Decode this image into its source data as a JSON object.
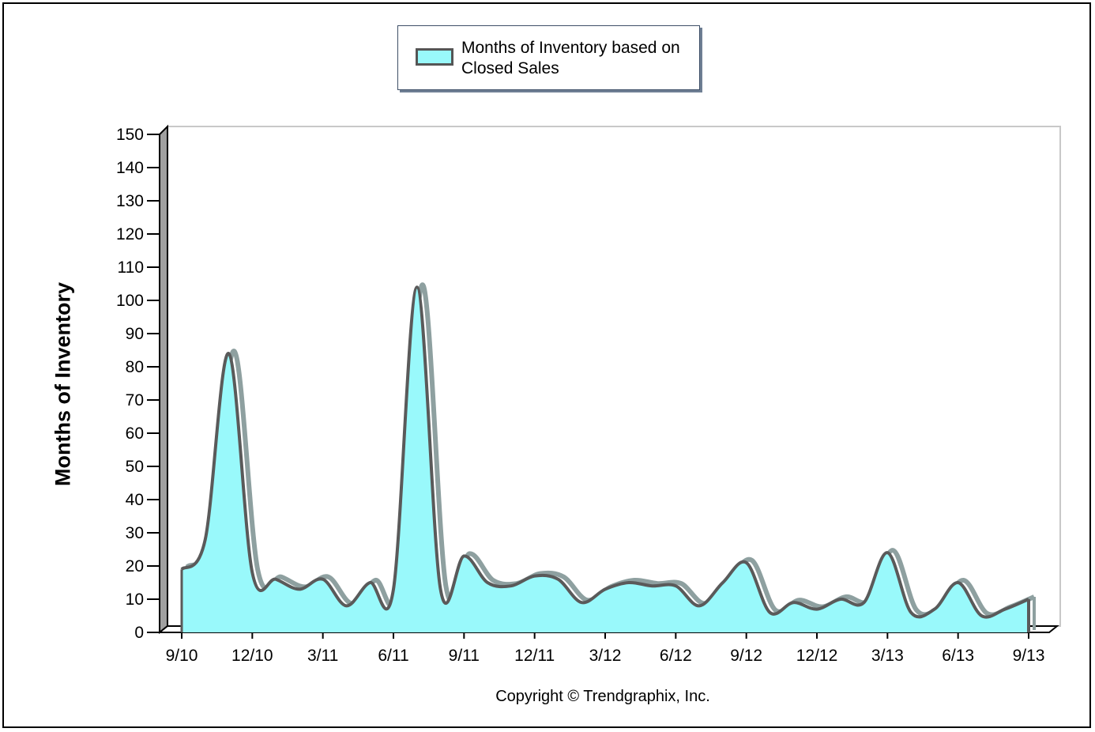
{
  "legend": {
    "label": "Months of Inventory based on Closed Sales"
  },
  "copyright": "Copyright © Trendgraphix, Inc.",
  "colors": {
    "fill": "#99f9fb",
    "line": "#5a5a5a",
    "shadow": "#8ea0a0",
    "wall": "#a0a0a0"
  },
  "chart_data": {
    "type": "area",
    "ylabel": "Months of Inventory",
    "xlabel": "",
    "ylim": [
      0,
      150
    ],
    "yticks": [
      0,
      10,
      20,
      30,
      40,
      50,
      60,
      70,
      80,
      90,
      100,
      110,
      120,
      130,
      140,
      150
    ],
    "xtick_labels": [
      "9/10",
      "12/10",
      "3/11",
      "6/11",
      "9/11",
      "12/11",
      "3/12",
      "6/12",
      "9/12",
      "12/12",
      "3/13",
      "6/13",
      "9/13"
    ],
    "x": [
      "9/10",
      "10/10",
      "11/10",
      "12/10",
      "1/11",
      "2/11",
      "3/11",
      "4/11",
      "5/11",
      "6/11",
      "7/11",
      "8/11",
      "9/11",
      "10/11",
      "11/11",
      "12/11",
      "1/12",
      "2/12",
      "3/12",
      "4/12",
      "5/12",
      "6/12",
      "7/12",
      "8/12",
      "9/12",
      "10/12",
      "11/12",
      "12/12",
      "1/13",
      "2/13",
      "3/13",
      "4/13",
      "5/13",
      "6/13",
      "7/13",
      "8/13",
      "9/13"
    ],
    "series": [
      {
        "name": "Months of Inventory based on Closed Sales",
        "values": [
          19,
          28,
          84,
          18,
          16,
          13,
          16,
          8,
          15,
          13,
          104,
          13,
          23,
          15,
          14,
          17,
          16,
          9,
          13,
          15,
          14,
          14,
          8,
          15,
          21,
          6,
          9,
          7,
          10,
          9,
          24,
          6,
          7,
          15,
          5,
          7,
          10
        ]
      }
    ],
    "grid": false,
    "legend_position": "top"
  }
}
